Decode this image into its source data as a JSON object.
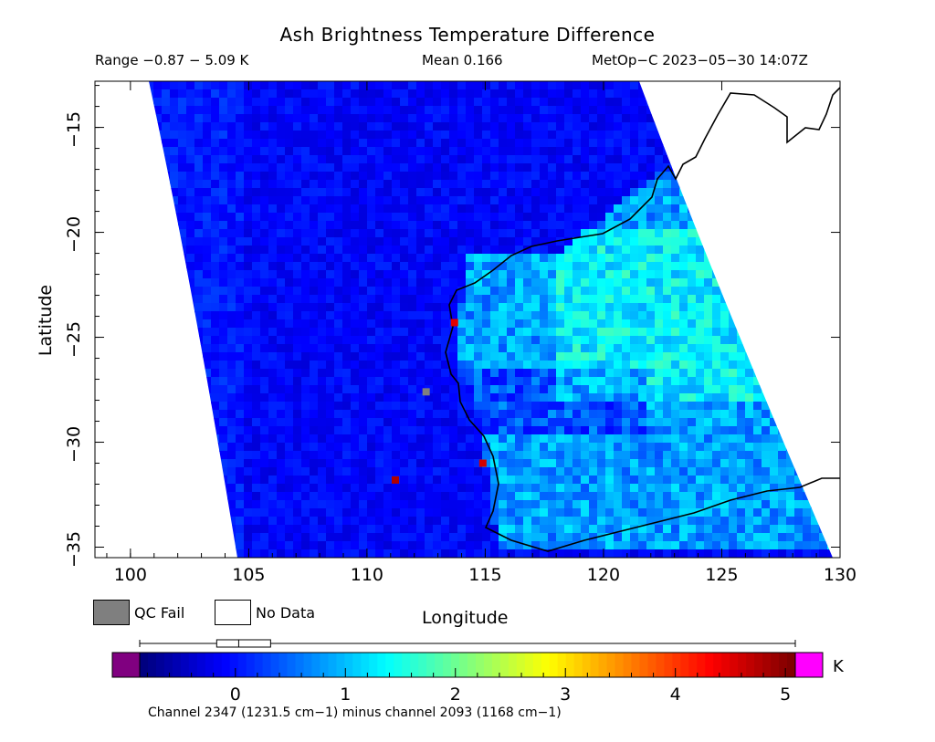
{
  "header": {
    "title": "Ash Brightness Temperature Difference",
    "range_text": "Range −0.87 − 5.09 K",
    "mean_text": "Mean 0.166",
    "satellite_text": "MetOp−C 2023−05−30 14:07Z"
  },
  "axes": {
    "x_label": "Longitude",
    "y_label": "Latitude",
    "x_ticks": [
      "100",
      "105",
      "110",
      "115",
      "120",
      "125",
      "130"
    ],
    "y_ticks": [
      "−15",
      "−20",
      "−25",
      "−30",
      "−35"
    ],
    "x_range": [
      98.5,
      130
    ],
    "y_range": [
      -35.5,
      -12.8
    ]
  },
  "legend": {
    "qc_fail_label": "QC Fail",
    "no_data_label": "No Data",
    "qc_fail_color": "#7f7f7f",
    "no_data_color": "#ffffff"
  },
  "colorbar": {
    "unit": "K",
    "ticks": [
      "0",
      "1",
      "2",
      "3",
      "4",
      "5"
    ],
    "tick_values": [
      0,
      1,
      2,
      3,
      4,
      5
    ],
    "min": -0.87,
    "max": 5.09,
    "under_color": "#800080",
    "over_color": "#ff00ff",
    "boxplot": {
      "whisker_low": -0.87,
      "q1": -0.17,
      "median": 0.03,
      "q3": 0.32,
      "whisker_high": 5.09
    }
  },
  "footnote": "Channel 2347 (1231.5 cm−1) minus channel 2093 (1168 cm−1)",
  "map": {
    "region": "Western Australia",
    "hotspots": [
      {
        "lon": 113.7,
        "lat": -24.3,
        "value": 4.5
      },
      {
        "lon": 111.2,
        "lat": -31.8,
        "value": 4.8
      },
      {
        "lon": 114.9,
        "lat": -31.0,
        "value": 4.6
      },
      {
        "lon": 112.5,
        "lat": -27.6,
        "value": "QC Fail"
      }
    ]
  }
}
